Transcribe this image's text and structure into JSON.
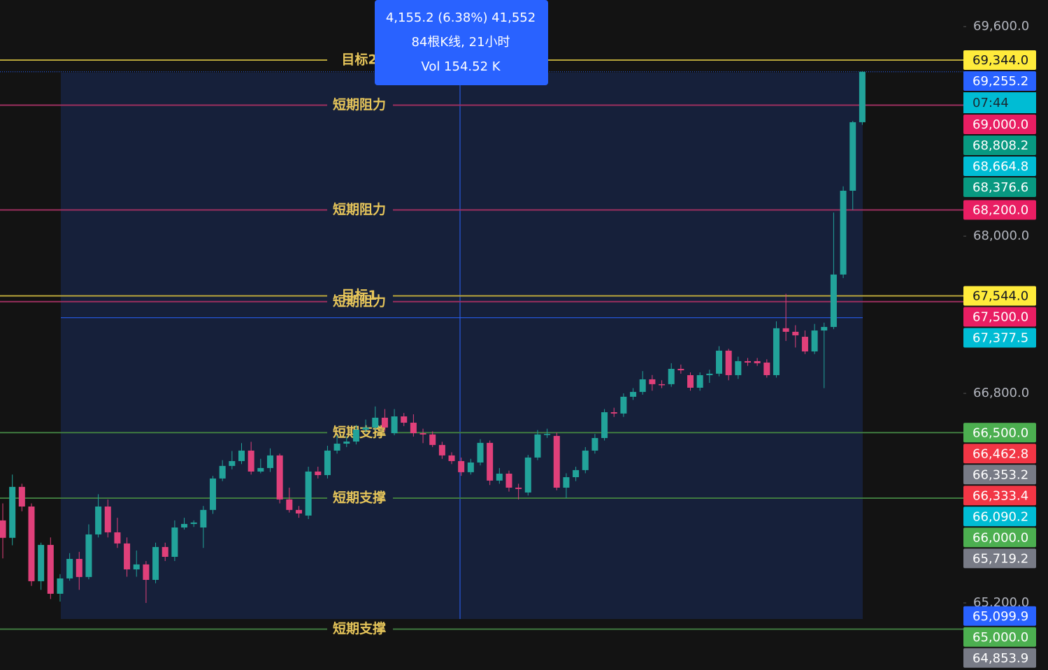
{
  "chart_data": {
    "type": "candlestick",
    "ylim": [
      64688,
      69803
    ],
    "yticks": [
      {
        "value": 69600,
        "label": "69,600.0"
      },
      {
        "value": 68000,
        "label": "68,000.0"
      },
      {
        "value": 66800,
        "label": "66,800.0"
      },
      {
        "value": 65200,
        "label": "65,200.0"
      }
    ],
    "up_color": "#22a39a",
    "down_color": "#e0407a",
    "open": [
      65830,
      65697,
      66086,
      65936,
      65366,
      65643,
      65270,
      65387,
      65536,
      65398,
      65723,
      65936,
      65739,
      65654,
      65456,
      65494,
      65376,
      65627,
      65552,
      65776,
      65803,
      65776,
      65910,
      66150,
      66246,
      66283,
      66363,
      66203,
      66230,
      66326,
      65990,
      65910,
      65867,
      66203,
      66176,
      66363,
      66416,
      66432,
      66523,
      66539,
      66614,
      66496,
      66624,
      66576,
      66496,
      66486,
      66406,
      66326,
      66283,
      66198,
      66272,
      66422,
      66134,
      66187,
      66080,
      66043,
      66310,
      66486,
      66475,
      66080,
      66160,
      66214,
      66363,
      66459,
      66656,
      66646,
      66774,
      66811,
      66907,
      66870,
      66870,
      66987,
      66939,
      66843,
      66939,
      66950,
      67126,
      66939,
      67046,
      67046,
      67035,
      66939,
      67297,
      67270,
      67232,
      67120,
      67280,
      67307,
      67707,
      68347,
      68870
    ],
    "high": [
      65960,
      66180,
      66110,
      65960,
      65660,
      65700,
      65420,
      65580,
      65590,
      65800,
      66030,
      65990,
      65850,
      65700,
      65600,
      65520,
      65660,
      65660,
      65830,
      65850,
      65830,
      65940,
      66170,
      66290,
      66360,
      66420,
      66430,
      66300,
      66380,
      66340,
      66080,
      65940,
      66240,
      66240,
      66400,
      66480,
      66470,
      66560,
      66600,
      66700,
      66680,
      66680,
      66650,
      66640,
      66530,
      66510,
      66430,
      66350,
      66310,
      66300,
      66450,
      66440,
      66230,
      66210,
      66110,
      66330,
      66520,
      66530,
      66500,
      66190,
      66240,
      66390,
      66490,
      66680,
      66690,
      66800,
      66840,
      66970,
      66940,
      66900,
      67030,
      67020,
      66960,
      66960,
      66980,
      67160,
      67140,
      67080,
      67070,
      67070,
      67060,
      67350,
      67560,
      67320,
      67280,
      67330,
      67340,
      68180,
      68380,
      68880,
      69260
    ],
    "low": [
      65540,
      65640,
      65900,
      65330,
      65300,
      65230,
      65210,
      65370,
      65300,
      65380,
      65700,
      65700,
      65620,
      65400,
      65400,
      65200,
      65350,
      65520,
      65520,
      65760,
      65780,
      65620,
      65880,
      66130,
      66220,
      66260,
      66180,
      66190,
      66200,
      65960,
      65890,
      65850,
      65840,
      66150,
      66150,
      66340,
      66390,
      66410,
      66500,
      66520,
      66510,
      66480,
      66550,
      66470,
      66420,
      66390,
      66300,
      66260,
      66170,
      66180,
      66250,
      66100,
      66110,
      66050,
      65990,
      66020,
      66290,
      66460,
      66060,
      66000,
      66130,
      66190,
      66340,
      66440,
      66620,
      66620,
      66750,
      66790,
      66820,
      66840,
      66850,
      66950,
      66820,
      66820,
      66880,
      66930,
      66900,
      66910,
      67010,
      67010,
      66920,
      66920,
      67200,
      67150,
      67100,
      67100,
      66840,
      67290,
      67680,
      68200,
      68850
    ],
    "close": [
      65697,
      66086,
      65936,
      65366,
      65643,
      65270,
      65387,
      65536,
      65398,
      65723,
      65936,
      65739,
      65654,
      65456,
      65494,
      65376,
      65627,
      65552,
      65776,
      65803,
      65814,
      65910,
      66150,
      66246,
      66283,
      66363,
      66203,
      66230,
      66326,
      65990,
      65910,
      65883,
      66203,
      66176,
      66363,
      66416,
      66432,
      66523,
      66539,
      66614,
      66539,
      66624,
      66576,
      66496,
      66486,
      66406,
      66326,
      66283,
      66198,
      66272,
      66422,
      66134,
      66187,
      66080,
      66070,
      66310,
      66486,
      66490,
      66080,
      66160,
      66214,
      66363,
      66459,
      66656,
      66646,
      66774,
      66811,
      66907,
      66870,
      66865,
      66987,
      66976,
      66843,
      66939,
      66950,
      67126,
      66939,
      67046,
      67035,
      67030,
      66939,
      67297,
      67270,
      67243,
      67120,
      67280,
      67307,
      67707,
      68347,
      68870,
      69255.2
    ],
    "levels": [
      {
        "label": "目标2",
        "value": 69344,
        "color": "#b8a53a"
      },
      {
        "label": "短期阻力",
        "value": 69000,
        "color": "#9c2f5f"
      },
      {
        "label": "短期阻力",
        "value": 68200,
        "color": "#9c2f5f"
      },
      {
        "label": "目标1",
        "value": 67544,
        "color": "#b8a53a"
      },
      {
        "label": "短期阻力",
        "value": 67500,
        "color": "#9c2f5f"
      },
      {
        "label": "短期支撑",
        "value": 66500,
        "color": "#3f7a3f"
      },
      {
        "label": "短期支撑",
        "value": 66000,
        "color": "#3f7a3f"
      },
      {
        "label": "短期支撑",
        "value": 65000,
        "color": "#3f7a3f"
      }
    ],
    "price_labels": [
      {
        "label": "69,344.0",
        "value": 69344,
        "color": "#ffeb3b"
      },
      {
        "label": "69,255.2",
        "value": 69255.2,
        "color": "#2962ff",
        "sub": "07:44",
        "sub_color": "#00bcd4"
      },
      {
        "label": "69,000.0",
        "value": 69000,
        "color": "#e91e63"
      },
      {
        "label": "68,808.2",
        "value": 68808.2,
        "color": "#089981"
      },
      {
        "label": "68,664.8",
        "value": 68664.8,
        "color": "#00bcd4"
      },
      {
        "label": "68,376.6",
        "value": 68376.6,
        "color": "#089981"
      },
      {
        "label": "68,200.0",
        "value": 68200,
        "color": "#e91e63"
      },
      {
        "label": "67,544.0",
        "value": 67544,
        "color": "#ffeb3b"
      },
      {
        "label": "67,500.0",
        "value": 67500,
        "color": "#e91e63"
      },
      {
        "label": "67,377.5",
        "value": 67377.5,
        "color": "#00bcd4"
      },
      {
        "label": "66,500.0",
        "value": 66500,
        "color": "#4caf50"
      },
      {
        "label": "66,462.8",
        "value": 66462.8,
        "color": "#f23645"
      },
      {
        "label": "66,353.2",
        "value": 66353.2,
        "color": "#787b86"
      },
      {
        "label": "66,333.4",
        "value": 66333.4,
        "color": "#f23645"
      },
      {
        "label": "66,090.2",
        "value": 66090.2,
        "color": "#00bcd4"
      },
      {
        "label": "66,000.0",
        "value": 66000,
        "color": "#4caf50"
      },
      {
        "label": "65,719.2",
        "value": 65719.2,
        "color": "#787b86"
      },
      {
        "label": "65,099.9",
        "value": 65099.9,
        "color": "#2962ff"
      },
      {
        "label": "65,000.0",
        "value": 65000,
        "color": "#4caf50"
      },
      {
        "label": "64,853.9",
        "value": 64853.9,
        "color": "#787b86"
      }
    ],
    "tooltip": [
      "4,155.2 (6.38%) 41,552",
      "84根K线, 21小时",
      "Vol 154.52 K"
    ]
  }
}
